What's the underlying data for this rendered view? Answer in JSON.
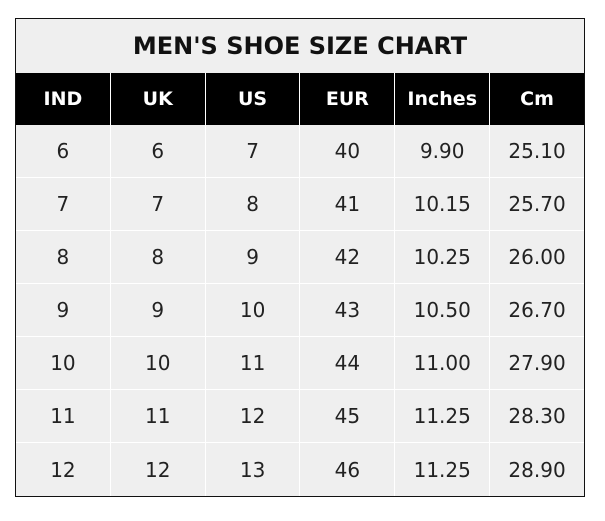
{
  "chart_data": {
    "type": "table",
    "title": "MEN'S SHOE SIZE CHART",
    "columns": [
      "IND",
      "UK",
      "US",
      "EUR",
      "Inches",
      "Cm"
    ],
    "rows": [
      [
        "6",
        "6",
        "7",
        "40",
        "9.90",
        "25.10"
      ],
      [
        "7",
        "7",
        "8",
        "41",
        "10.15",
        "25.70"
      ],
      [
        "8",
        "8",
        "9",
        "42",
        "10.25",
        "26.00"
      ],
      [
        "9",
        "9",
        "10",
        "43",
        "10.50",
        "26.70"
      ],
      [
        "10",
        "10",
        "11",
        "44",
        "11.00",
        "27.90"
      ],
      [
        "11",
        "11",
        "12",
        "45",
        "11.25",
        "28.30"
      ],
      [
        "12",
        "12",
        "13",
        "46",
        "11.25",
        "28.90"
      ]
    ],
    "colors": {
      "header_bg": "#000000",
      "header_text": "#ffffff",
      "cell_bg": "#efefef",
      "grid": "#ffffff"
    }
  }
}
